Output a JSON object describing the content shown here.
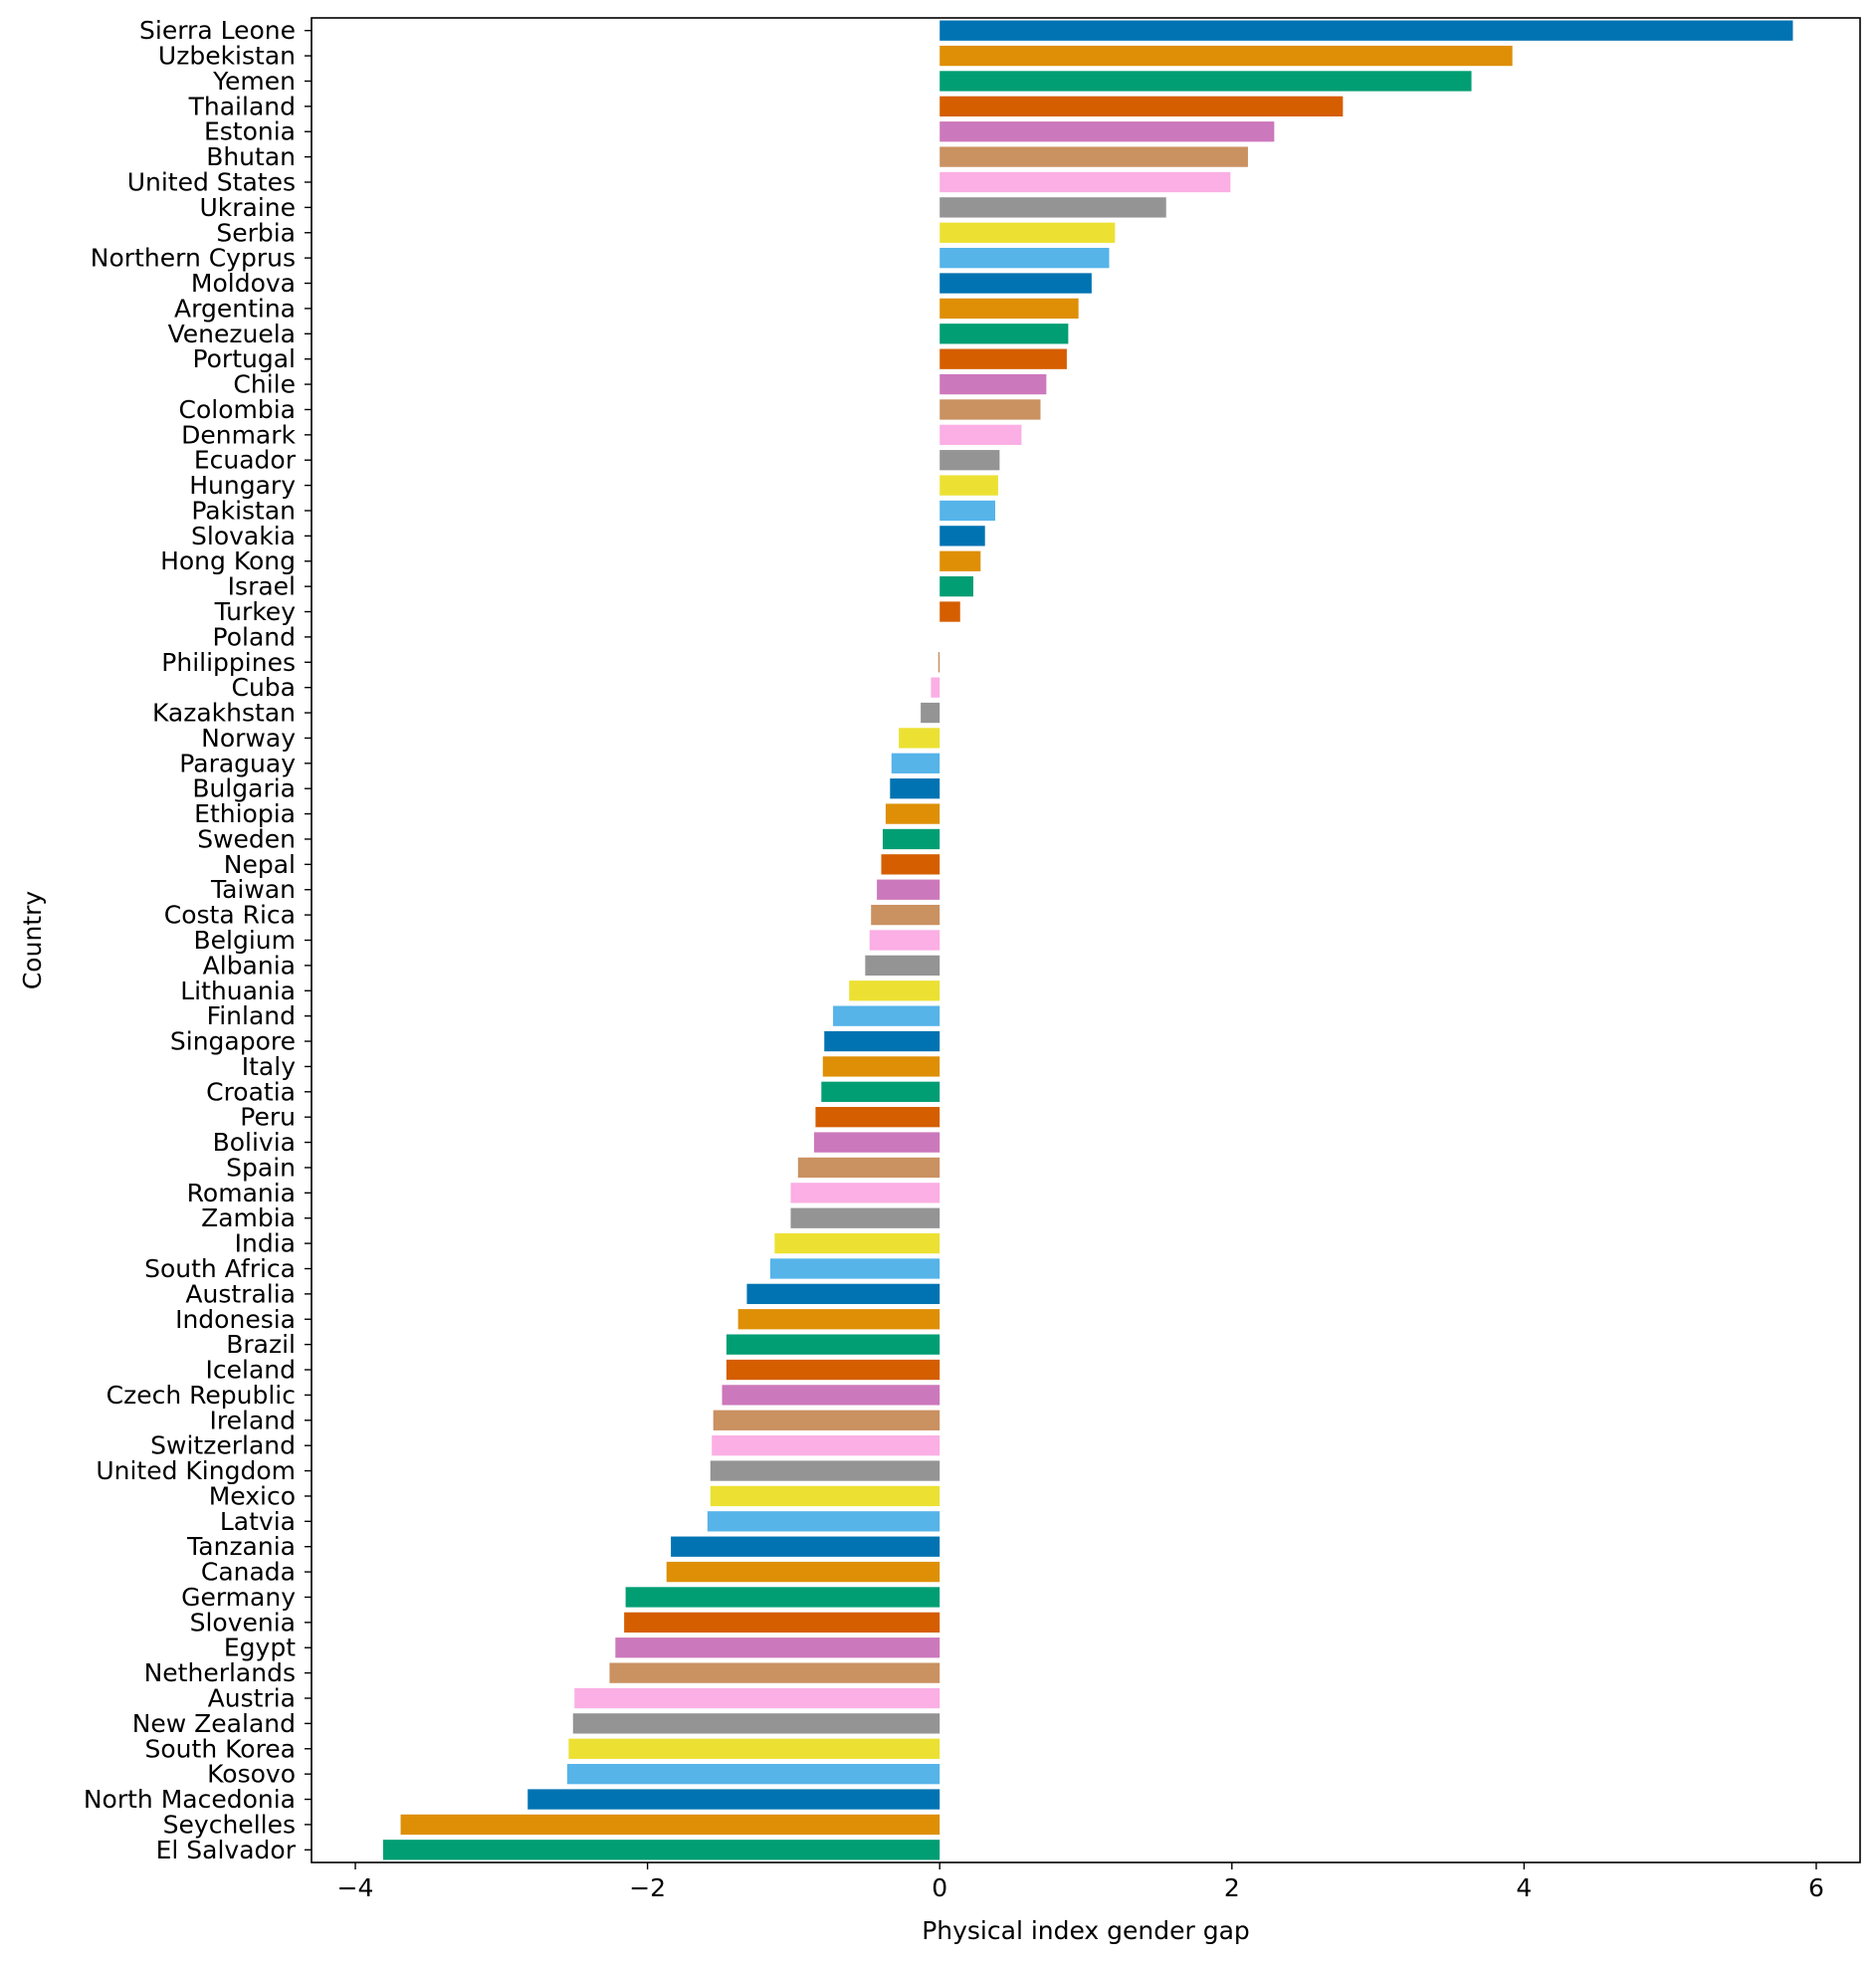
{
  "chart_data": {
    "type": "bar",
    "orientation": "horizontal",
    "xlabel": "Physical index gender gap",
    "ylabel": "Country",
    "xlim": [
      -4.3,
      6.3
    ],
    "xticks": [
      -4,
      -2,
      0,
      2,
      4,
      6
    ],
    "xtick_labels": [
      "−4",
      "−2",
      "0",
      "2",
      "4",
      "6"
    ],
    "grid": false,
    "palette": [
      "#0173b2",
      "#de8f05",
      "#029e73",
      "#d55e00",
      "#cc78bc",
      "#ca9161",
      "#fbafe4",
      "#949494",
      "#ece133",
      "#56b4e9"
    ],
    "categories": [
      "Sierra Leone",
      "Uzbekistan",
      "Yemen",
      "Thailand",
      "Estonia",
      "Bhutan",
      "United States",
      "Ukraine",
      "Serbia",
      "Northern Cyprus",
      "Moldova",
      "Argentina",
      "Venezuela",
      "Portugal",
      "Chile",
      "Colombia",
      "Denmark",
      "Ecuador",
      "Hungary",
      "Pakistan",
      "Slovakia",
      "Hong Kong",
      "Israel",
      "Turkey",
      "Poland",
      "Philippines",
      "Cuba",
      "Kazakhstan",
      "Norway",
      "Paraguay",
      "Bulgaria",
      "Ethiopia",
      "Sweden",
      "Nepal",
      "Taiwan",
      "Costa Rica",
      "Belgium",
      "Albania",
      "Lithuania",
      "Finland",
      "Singapore",
      "Italy",
      "Croatia",
      "Peru",
      "Bolivia",
      "Spain",
      "Romania",
      "Zambia",
      "India",
      "South Africa",
      "Australia",
      "Indonesia",
      "Brazil",
      "Iceland",
      "Czech Republic",
      "Ireland",
      "Switzerland",
      "United Kingdom",
      "Mexico",
      "Latvia",
      "Tanzania",
      "Canada",
      "Germany",
      "Slovenia",
      "Egypt",
      "Netherlands",
      "Austria",
      "New Zealand",
      "South Korea",
      "Kosovo",
      "North Macedonia",
      "Seychelles",
      "El Salvador"
    ],
    "values": [
      5.84,
      3.92,
      3.64,
      2.76,
      2.29,
      2.11,
      1.99,
      1.55,
      1.2,
      1.16,
      1.04,
      0.95,
      0.88,
      0.87,
      0.73,
      0.69,
      0.56,
      0.41,
      0.4,
      0.38,
      0.31,
      0.28,
      0.23,
      0.14,
      0.0,
      -0.01,
      -0.06,
      -0.13,
      -0.28,
      -0.33,
      -0.34,
      -0.37,
      -0.39,
      -0.4,
      -0.43,
      -0.47,
      -0.48,
      -0.51,
      -0.62,
      -0.73,
      -0.79,
      -0.8,
      -0.81,
      -0.85,
      -0.86,
      -0.97,
      -1.02,
      -1.02,
      -1.13,
      -1.16,
      -1.32,
      -1.38,
      -1.46,
      -1.46,
      -1.49,
      -1.55,
      -1.56,
      -1.57,
      -1.57,
      -1.59,
      -1.84,
      -1.87,
      -2.15,
      -2.16,
      -2.22,
      -2.26,
      -2.5,
      -2.51,
      -2.54,
      -2.55,
      -2.82,
      -3.69,
      -3.81
    ]
  }
}
